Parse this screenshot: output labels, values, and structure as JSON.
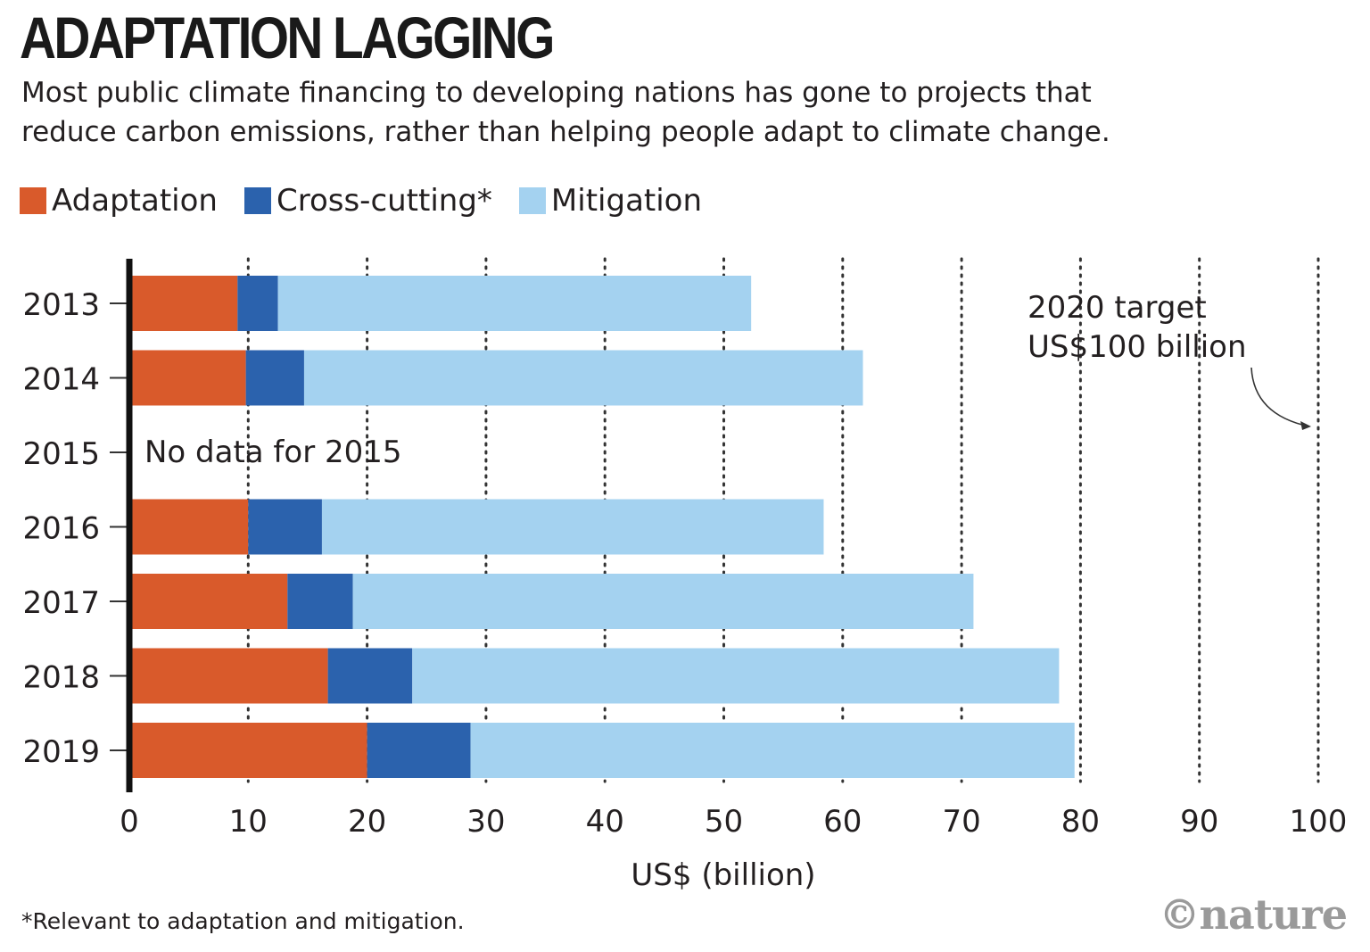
{
  "title": "ADAPTATION LAGGING",
  "subtitle_lines": [
    "Most public climate financing to developing nations has gone to projects that",
    "reduce carbon emissions, rather than helping people adapt to climate change."
  ],
  "footnote": "*Relevant to adaptation and mitigation.",
  "logo": "©nature",
  "chart_data": {
    "type": "bar",
    "orientation": "horizontal",
    "stacked": true,
    "categories": [
      "2013",
      "2014",
      "2015",
      "2016",
      "2017",
      "2018",
      "2019"
    ],
    "series": [
      {
        "name": "Adaptation",
        "color": "#d95a2b",
        "values": [
          9.1,
          9.8,
          null,
          10.0,
          13.3,
          16.7,
          20.0
        ]
      },
      {
        "name": "Cross-cutting*",
        "color": "#2b62ad",
        "values": [
          3.4,
          4.9,
          null,
          6.2,
          5.5,
          7.1,
          8.7
        ]
      },
      {
        "name": "Mitigation",
        "color": "#a4d2f0",
        "values": [
          39.8,
          47.0,
          null,
          42.2,
          52.2,
          54.4,
          50.8
        ]
      }
    ],
    "xlabel": "US$ (billion)",
    "xlim": [
      0,
      100
    ],
    "xticks": [
      "0",
      "10",
      "20",
      "30",
      "40",
      "50",
      "60",
      "70",
      "80",
      "90",
      "100"
    ],
    "grid": "dotted vertical",
    "legend": "top-left",
    "annotations": {
      "no_data": "No data for 2015",
      "target_line1": "2020 target",
      "target_line2": "US$100 billion",
      "target_value": 100
    }
  }
}
